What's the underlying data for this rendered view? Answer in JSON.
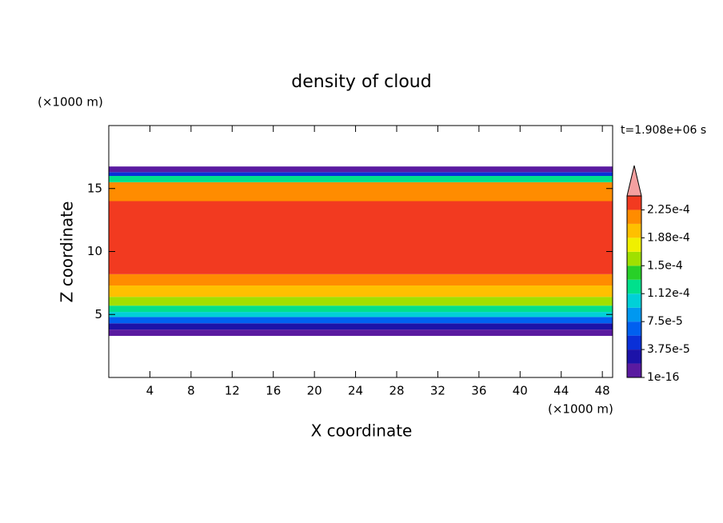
{
  "chart_data": {
    "type": "contour",
    "title": "density of cloud",
    "x_label": "X coordinate",
    "y_label": "Z coordinate",
    "x_unit": "(×1000 m)",
    "y_unit": "(×1000 m)",
    "time_label": "t=1.908e+06 s",
    "xlim": [
      0,
      49
    ],
    "ylim": [
      0,
      20
    ],
    "xticks": [
      4,
      8,
      12,
      16,
      20,
      24,
      28,
      32,
      36,
      40,
      44,
      48
    ],
    "yticks": [
      5,
      10,
      15
    ],
    "z_bins": [
      3.3,
      3.8,
      4.3,
      4.8,
      5.2,
      5.7,
      6.4,
      7.3,
      8.2,
      14,
      15.5,
      16,
      16.3,
      16.75
    ],
    "values": [
      1e-05,
      3e-05,
      6e-05,
      0.0001,
      0.00013,
      0.00016,
      0.00019,
      0.00021,
      0.00023,
      0.000215,
      0.00013,
      5e-05,
      1e-05
    ],
    "colorbar": {
      "levels": [
        1e-16,
        1.875e-05,
        3.75e-05,
        5.625e-05,
        7.5e-05,
        9.375e-05,
        0.0001125,
        0.00013125,
        0.00015,
        0.00016875,
        0.0001875,
        0.00020625,
        0.000225,
        0.00024375
      ],
      "colors": [
        "#5a1aa0",
        "#1c12a8",
        "#0a30d8",
        "#0060f0",
        "#0098f0",
        "#00d0d8",
        "#00e08c",
        "#28d028",
        "#a0e000",
        "#f0f000",
        "#ffc000",
        "#ff8c00",
        "#f23a20"
      ],
      "extend_color": "#f4a0a0",
      "ticks": [
        1e-16,
        {
          "value": 3.75e-05,
          "label": "3.75e-5"
        },
        {
          "value": 7.5e-05,
          "label": "7.5e-5"
        },
        {
          "value": 0.0001125,
          "label": "1.12e-4"
        },
        {
          "value": 0.00015,
          "label": "1.5e-4"
        },
        {
          "value": 0.0001875,
          "label": "1.88e-4"
        },
        {
          "value": 0.000225,
          "label": "2.25e-4"
        }
      ]
    }
  }
}
